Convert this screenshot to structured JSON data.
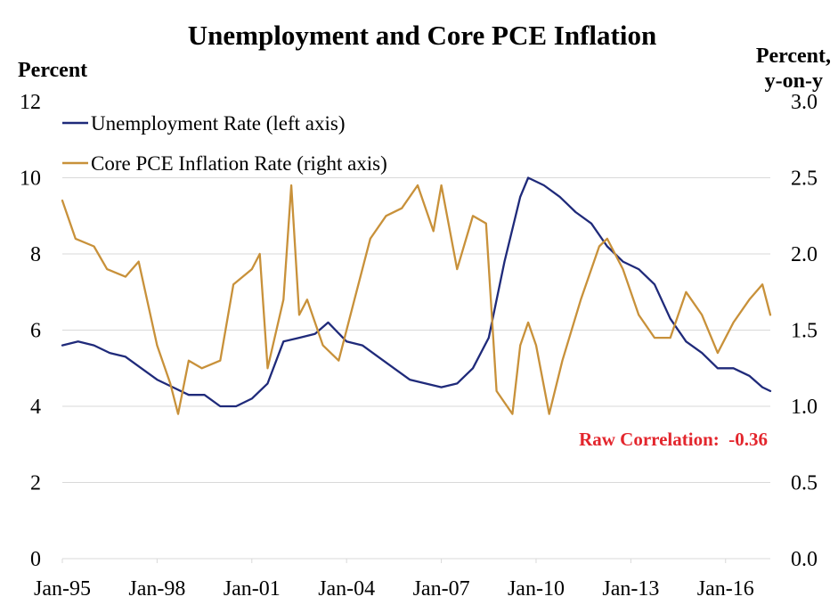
{
  "chart_data": {
    "type": "line",
    "title": "Unemployment and Core PCE Inflation",
    "ylabel_left": "Percent",
    "ylabel_right": [
      "Percent,",
      "y-on-y"
    ],
    "x_tick_labels": [
      "Jan-95",
      "Jan-98",
      "Jan-01",
      "Jan-04",
      "Jan-07",
      "Jan-10",
      "Jan-13",
      "Jan-16"
    ],
    "x_tick_dates": [
      "1995-01",
      "1998-01",
      "2001-01",
      "2004-01",
      "2007-01",
      "2010-01",
      "2013-01",
      "2016-01"
    ],
    "x_range": [
      "1995-01",
      "2017-06"
    ],
    "ylim_left": [
      0,
      12
    ],
    "ylim_right": [
      0.0,
      3.0
    ],
    "y_ticks_left": [
      "0",
      "2",
      "4",
      "6",
      "8",
      "10",
      "12"
    ],
    "y_ticks_right": [
      "0.0",
      "0.5",
      "1.0",
      "1.5",
      "2.0",
      "2.5",
      "3.0"
    ],
    "grid": "horizontal",
    "legend_position": "top-left",
    "annotation": {
      "text": "Raw Correlation:  -0.36",
      "color": "#e3262d"
    },
    "series": [
      {
        "name": "Unemployment Rate (left axis)",
        "axis": "left",
        "color": "#1f2a7a",
        "x": [
          "1995-01",
          "1995-07",
          "1996-01",
          "1996-07",
          "1997-01",
          "1997-07",
          "1998-01",
          "1998-07",
          "1999-01",
          "1999-07",
          "2000-01",
          "2000-07",
          "2001-01",
          "2001-07",
          "2002-01",
          "2002-07",
          "2003-01",
          "2003-06",
          "2004-01",
          "2004-07",
          "2005-01",
          "2005-07",
          "2006-01",
          "2006-07",
          "2007-01",
          "2007-07",
          "2008-01",
          "2008-07",
          "2009-01",
          "2009-07",
          "2009-10",
          "2010-04",
          "2010-10",
          "2011-04",
          "2011-10",
          "2012-04",
          "2012-10",
          "2013-04",
          "2013-10",
          "2014-04",
          "2014-10",
          "2015-04",
          "2015-10",
          "2016-04",
          "2016-10",
          "2017-03",
          "2017-06"
        ],
        "values": [
          5.6,
          5.7,
          5.6,
          5.4,
          5.3,
          5.0,
          4.7,
          4.5,
          4.3,
          4.3,
          4.0,
          4.0,
          4.2,
          4.6,
          5.7,
          5.8,
          5.9,
          6.2,
          5.7,
          5.6,
          5.3,
          5.0,
          4.7,
          4.6,
          4.5,
          4.6,
          5.0,
          5.8,
          7.8,
          9.5,
          10.0,
          9.8,
          9.5,
          9.1,
          8.8,
          8.2,
          7.8,
          7.6,
          7.2,
          6.3,
          5.7,
          5.4,
          5.0,
          5.0,
          4.8,
          4.5,
          4.4
        ]
      },
      {
        "name": "Core PCE Inflation Rate (right axis)",
        "axis": "right",
        "color": "#c8913a",
        "x": [
          "1995-01",
          "1995-06",
          "1996-01",
          "1996-06",
          "1997-01",
          "1997-06",
          "1998-01",
          "1998-06",
          "1998-09",
          "1999-01",
          "1999-06",
          "2000-01",
          "2000-06",
          "2001-01",
          "2001-04",
          "2001-07",
          "2002-01",
          "2002-04",
          "2002-07",
          "2002-10",
          "2003-01",
          "2003-04",
          "2003-10",
          "2004-04",
          "2004-10",
          "2005-04",
          "2005-10",
          "2006-04",
          "2006-10",
          "2007-01",
          "2007-07",
          "2008-01",
          "2008-06",
          "2008-10",
          "2009-04",
          "2009-07",
          "2009-10",
          "2010-01",
          "2010-06",
          "2010-11",
          "2011-06",
          "2012-01",
          "2012-04",
          "2012-10",
          "2013-04",
          "2013-10",
          "2014-04",
          "2014-10",
          "2015-04",
          "2015-10",
          "2016-04",
          "2016-10",
          "2017-03",
          "2017-06"
        ],
        "values": [
          2.35,
          2.1,
          2.05,
          1.9,
          1.85,
          1.95,
          1.4,
          1.15,
          0.95,
          1.3,
          1.25,
          1.3,
          1.8,
          1.9,
          2.0,
          1.25,
          1.7,
          2.45,
          1.6,
          1.7,
          1.55,
          1.4,
          1.3,
          1.7,
          2.1,
          2.25,
          2.3,
          2.45,
          2.15,
          2.45,
          1.9,
          2.25,
          2.2,
          1.1,
          0.95,
          1.4,
          1.55,
          1.4,
          0.95,
          1.3,
          1.7,
          2.05,
          2.1,
          1.9,
          1.6,
          1.45,
          1.45,
          1.75,
          1.6,
          1.35,
          1.55,
          1.7,
          1.8,
          1.6
        ]
      }
    ]
  }
}
